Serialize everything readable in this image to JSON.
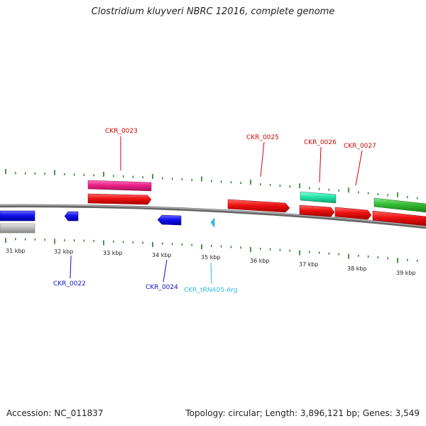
{
  "title": "Clostridium kluyveri NBRC 12016, complete genome",
  "footer": {
    "accession": "Accession: NC_011837",
    "summary": "Topology: circular; Length: 3,896,121 bp; Genes: 3,549"
  },
  "scale_labels": [
    "31 kbp",
    "32 kbp",
    "33 kbp",
    "34 kbp",
    "35 kbp",
    "36 kbp",
    "37 kbp",
    "38 kbp",
    "39 kbp"
  ],
  "gene_labels": [
    {
      "text": "CKR_0023",
      "color": "#d40000"
    },
    {
      "text": "CKR_0025",
      "color": "#d40000"
    },
    {
      "text": "CKR_0026",
      "color": "#d40000"
    },
    {
      "text": "CKR_0027",
      "color": "#d40000"
    },
    {
      "text": "CKR_0022",
      "color": "#1010c0"
    },
    {
      "text": "CKR_0024",
      "color": "#1010c0"
    },
    {
      "text": "CKR_tRNA05-Arg",
      "color": "#30b8e0"
    }
  ],
  "colors": {
    "cds_forward": "#ee1111",
    "cds_reverse": "#1111ee",
    "pink_track": "#ee2288",
    "teal_track": "#22e6a8",
    "green_track": "#33bb33",
    "gray_track": "#bbbbbb",
    "trna": "#30c0f0",
    "backbone": "#777777",
    "tick": "#1a7a1a"
  }
}
